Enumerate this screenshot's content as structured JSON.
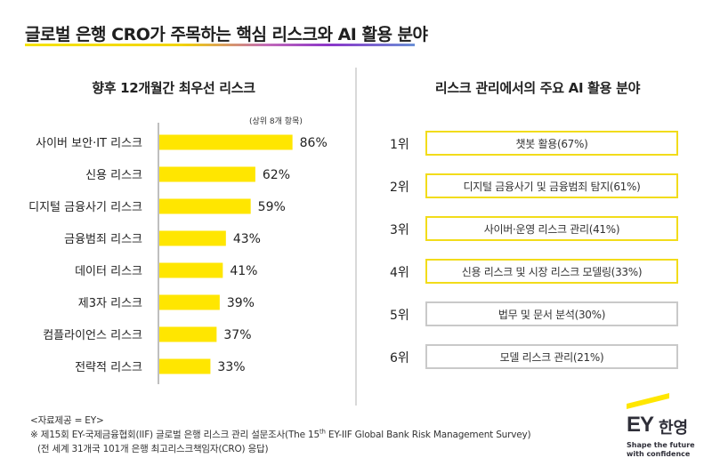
{
  "title": "글로벌 은행 CRO가 주목하는 핵심 리스크와 AI 활용 분야",
  "left_panel": {
    "title": "향후 12개월간 최우선 리스크",
    "note": "(상위 8개 항목)"
  },
  "right_panel": {
    "title": "리스크 관리에서의 주요 AI 활용 분야",
    "items": [
      {
        "rank": "1위",
        "label": "챗봇 활용(67%)",
        "highlight": true
      },
      {
        "rank": "2위",
        "label": "디지털 금융사기 및 금융범죄 탐지(61%)",
        "highlight": true
      },
      {
        "rank": "3위",
        "label": "사이버·운영 리스크 관리(41%)",
        "highlight": true
      },
      {
        "rank": "4위",
        "label": "신용 리스크 및 시장 리스크 모델링(33%)",
        "highlight": true
      },
      {
        "rank": "5위",
        "label": "법무 및 문서 분석(30%)",
        "highlight": false
      },
      {
        "rank": "6위",
        "label": "모델 리스크 관리(21%)",
        "highlight": false
      }
    ],
    "colors": {
      "highlight_border": "#f2dc1a",
      "normal_border": "#c9c9c9"
    }
  },
  "chart_data": {
    "type": "bar",
    "orientation": "horizontal",
    "title": "향후 12개월간 최우선 리스크",
    "subtitle": "(상위 8개 항목)",
    "categories": [
      "사이버 보안·IT 리스크",
      "신용 리스크",
      "디지털 금융사기 리스크",
      "금융범죄 리스크",
      "데이터 리스크",
      "제3자 리스크",
      "컴플라이언스 리스크",
      "전략적 리스크"
    ],
    "values": [
      86,
      62,
      59,
      43,
      41,
      39,
      37,
      33
    ],
    "value_labels": [
      "86%",
      "62%",
      "59%",
      "43%",
      "41%",
      "39%",
      "37%",
      "33%"
    ],
    "unit": "%",
    "xlim": [
      0,
      100
    ],
    "grid": false,
    "bar_color": "#ffe600",
    "axis_color": "#bfbfbf"
  },
  "footer": {
    "source": "<자료제공 = EY>",
    "survey_prefix": "※ 제15회 EY-국제금융협회(IIF) 글로벌 은행 리스크 관리 설문조사(The 15",
    "survey_sup": "th",
    "survey_suffix": " EY-IIF Global Bank Risk Management Survey)",
    "respondents": "(전 세계 31개국 101개 은행 최고리스크책임자(CRO) 응답)"
  },
  "logo": {
    "brand": "EY",
    "korean": "한영",
    "tagline_line1": "Shape the future",
    "tagline_line2": "with confidence",
    "accent_color": "#ffe600"
  }
}
